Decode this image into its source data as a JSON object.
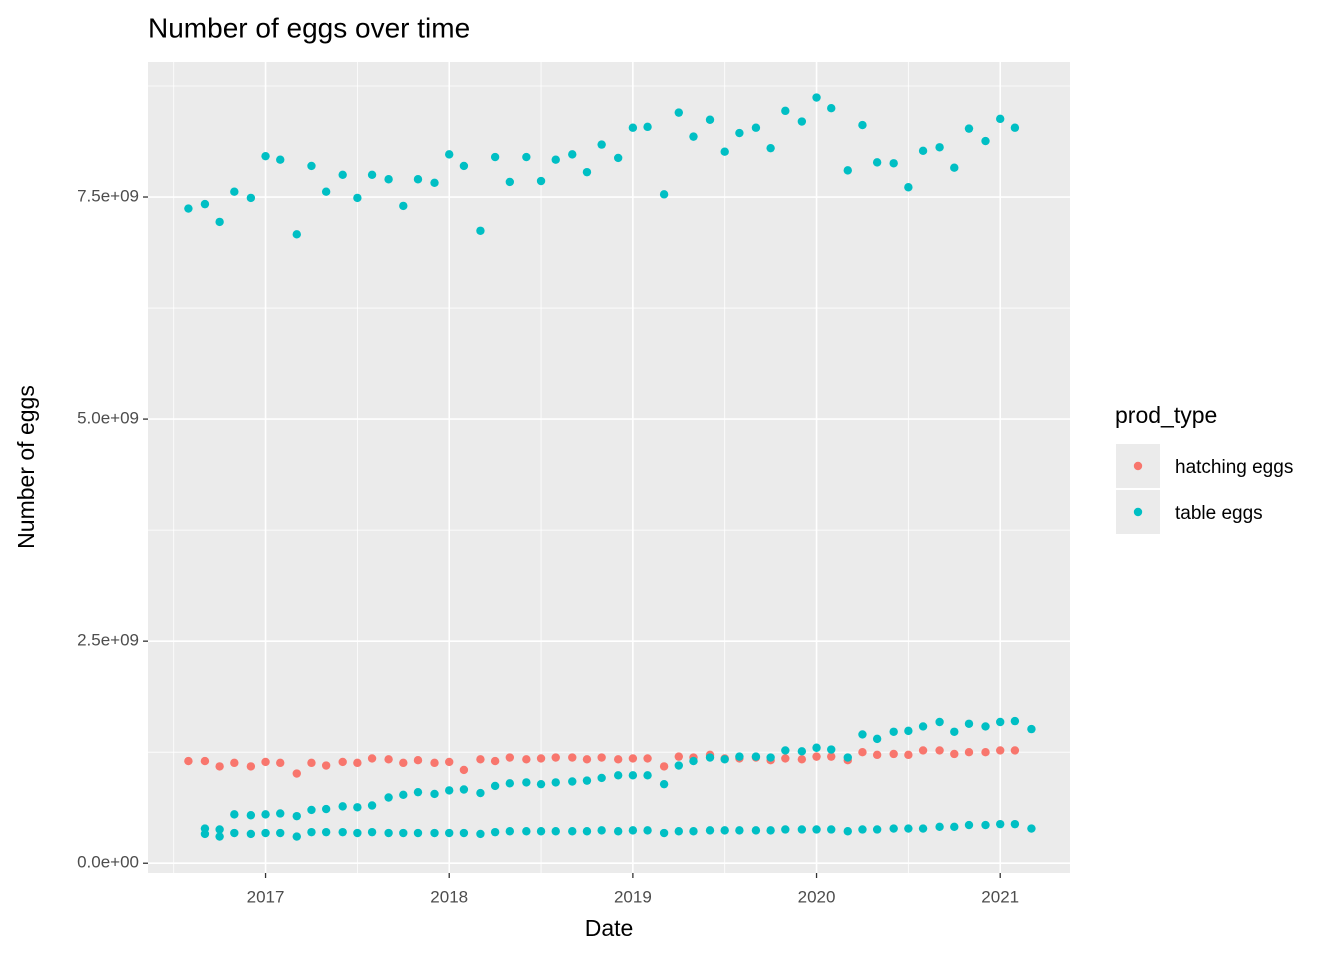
{
  "chart_data": {
    "type": "scatter",
    "title": "Number of eggs over time",
    "x_label": "Date",
    "y_label": "Number of eggs",
    "legend_title": "prod_type",
    "xlim": [
      2016.36,
      2021.38
    ],
    "xticks": [
      2017,
      2018,
      2019,
      2020,
      2021
    ],
    "ylim": [
      -110000000,
      9020000000
    ],
    "yticks": [
      {
        "value": 0,
        "label": "0.0e+00"
      },
      {
        "value": 2500000000,
        "label": "2.5e+09"
      },
      {
        "value": 5000000000,
        "label": "5.0e+09"
      },
      {
        "value": 7500000000,
        "label": "7.5e+09"
      }
    ],
    "grid": true,
    "legend": "right",
    "series": [
      {
        "name": "hatching eggs",
        "color": "#F8766D",
        "x": [
          2016.58,
          2016.67,
          2016.75,
          2016.83,
          2016.92,
          2017.0,
          2017.08,
          2017.17,
          2017.25,
          2017.33,
          2017.42,
          2017.5,
          2017.58,
          2017.67,
          2017.75,
          2017.83,
          2017.92,
          2018.0,
          2018.08,
          2018.17,
          2018.25,
          2018.33,
          2018.42,
          2018.5,
          2018.58,
          2018.67,
          2018.75,
          2018.83,
          2018.92,
          2019.0,
          2019.08,
          2019.17,
          2019.25,
          2019.33,
          2019.42,
          2019.5,
          2019.58,
          2019.67,
          2019.75,
          2019.83,
          2019.92,
          2020.0,
          2020.08,
          2020.17,
          2020.25,
          2020.33,
          2020.42,
          2020.5,
          2020.58,
          2020.67,
          2020.75,
          2020.83,
          2020.92,
          2021.0,
          2021.08
        ],
        "values": [
          1150000000.0,
          1150000000.0,
          1090000000.0,
          1130000000.0,
          1090000000.0,
          1140000000.0,
          1130000000.0,
          1010000000.0,
          1130000000.0,
          1100000000.0,
          1140000000.0,
          1130000000.0,
          1180000000.0,
          1170000000.0,
          1130000000.0,
          1160000000.0,
          1130000000.0,
          1140000000.0,
          1050000000.0,
          1170000000.0,
          1150000000.0,
          1190000000.0,
          1170000000.0,
          1180000000.0,
          1190000000.0,
          1190000000.0,
          1170000000.0,
          1190000000.0,
          1170000000.0,
          1180000000.0,
          1180000000.0,
          1090000000.0,
          1200000000.0,
          1190000000.0,
          1220000000.0,
          1180000000.0,
          1180000000.0,
          1190000000.0,
          1160000000.0,
          1180000000.0,
          1170000000.0,
          1200000000.0,
          1200000000.0,
          1160000000.0,
          1250000000.0,
          1220000000.0,
          1230000000.0,
          1220000000.0,
          1270000000.0,
          1270000000.0,
          1230000000.0,
          1250000000.0,
          1250000000.0,
          1270000000.0,
          1270000000.0
        ]
      },
      {
        "name": "table eggs",
        "color": "#00BFC4",
        "x": [
          2016.58,
          2016.67,
          2016.75,
          2016.83,
          2016.92,
          2017.0,
          2017.08,
          2017.17,
          2017.25,
          2017.33,
          2017.42,
          2017.5,
          2017.58,
          2017.67,
          2017.75,
          2017.83,
          2017.92,
          2018.0,
          2018.08,
          2018.17,
          2018.25,
          2018.33,
          2018.42,
          2018.5,
          2018.58,
          2018.67,
          2018.75,
          2018.83,
          2018.92,
          2019.0,
          2019.08,
          2019.17,
          2019.25,
          2019.33,
          2019.42,
          2019.5,
          2019.58,
          2019.67,
          2019.75,
          2019.83,
          2019.92,
          2020.0,
          2020.08,
          2020.17,
          2020.25,
          2020.33,
          2020.42,
          2020.5,
          2020.58,
          2020.67,
          2020.75,
          2020.83,
          2020.92,
          2021.0,
          2021.08,
          2016.67,
          2016.75,
          2016.83,
          2016.92,
          2017.0,
          2017.08,
          2017.17,
          2017.25,
          2017.33,
          2017.42,
          2017.5,
          2017.58,
          2017.67,
          2017.75,
          2017.83,
          2017.92,
          2018.0,
          2018.08,
          2018.17,
          2018.25,
          2018.33,
          2018.42,
          2018.5,
          2018.58,
          2018.67,
          2018.75,
          2018.83,
          2018.92,
          2019.0,
          2019.08,
          2019.17,
          2019.25,
          2019.33,
          2019.42,
          2019.5,
          2019.58,
          2019.67,
          2019.75,
          2019.83,
          2019.92,
          2020.0,
          2020.08,
          2020.17,
          2020.25,
          2020.33,
          2020.42,
          2020.5,
          2020.58,
          2020.67,
          2020.75,
          2020.83,
          2020.92,
          2021.0,
          2021.08,
          2021.17,
          2016.67,
          2016.75,
          2016.83,
          2016.92,
          2017.0,
          2017.08,
          2017.17,
          2017.25,
          2017.33,
          2017.42,
          2017.5,
          2017.58,
          2017.67,
          2017.75,
          2017.83,
          2017.92,
          2018.0,
          2018.08,
          2018.17,
          2018.25,
          2018.33,
          2018.42,
          2018.5,
          2018.58,
          2018.67,
          2018.75,
          2018.83,
          2018.92,
          2019.0,
          2019.08,
          2019.17,
          2019.25,
          2019.33,
          2019.42,
          2019.5,
          2019.58,
          2019.67,
          2019.75,
          2019.83,
          2019.92,
          2020.0,
          2020.08,
          2020.17,
          2020.25,
          2020.33,
          2020.42,
          2020.5,
          2020.58,
          2020.67,
          2020.75,
          2020.83,
          2020.92,
          2021.0,
          2021.08,
          2021.17
        ],
        "values": [
          7370000000.0,
          7420000000.0,
          7220000000.0,
          7560000000.0,
          7490000000.0,
          7960000000.0,
          7920000000.0,
          7080000000.0,
          7850000000.0,
          7560000000.0,
          7750000000.0,
          7490000000.0,
          7750000000.0,
          7700000000.0,
          7400000000.0,
          7700000000.0,
          7660000000.0,
          7980000000.0,
          7850000000.0,
          7120000000.0,
          7950000000.0,
          7670000000.0,
          7950000000.0,
          7680000000.0,
          7920000000.0,
          7980000000.0,
          7780000000.0,
          8090000000.0,
          7940000000.0,
          8280000000.0,
          8290000000.0,
          7530000000.0,
          8450000000.0,
          8180000000.0,
          8370000000.0,
          8010000000.0,
          8220000000.0,
          8280000000.0,
          8050000000.0,
          8470000000.0,
          8350000000.0,
          8620000000.0,
          8500000000.0,
          7800000000.0,
          8310000000.0,
          7890000000.0,
          7880000000.0,
          7610000000.0,
          8020000000.0,
          8060000000.0,
          7830000000.0,
          8270000000.0,
          8130000000.0,
          8380000000.0,
          8280000000.0,
          390000000.0,
          380000000.0,
          550000000.0,
          540000000.0,
          550000000.0,
          560000000.0,
          530000000.0,
          600000000.0,
          610000000.0,
          640000000.0,
          630000000.0,
          650000000.0,
          740000000.0,
          770000000.0,
          800000000.0,
          780000000.0,
          820000000.0,
          830000000.0,
          790000000.0,
          870000000.0,
          900000000.0,
          910000000.0,
          890000000.0,
          910000000.0,
          920000000.0,
          930000000.0,
          960000000.0,
          990000000.0,
          990000000.0,
          990000000.0,
          890000000.0,
          1100000000.0,
          1150000000.0,
          1190000000.0,
          1170000000.0,
          1200000000.0,
          1200000000.0,
          1190000000.0,
          1270000000.0,
          1260000000.0,
          1300000000.0,
          1280000000.0,
          1190000000.0,
          1450000000.0,
          1400000000.0,
          1480000000.0,
          1490000000.0,
          1540000000.0,
          1590000000.0,
          1480000000.0,
          1570000000.0,
          1540000000.0,
          1590000000.0,
          1600000000.0,
          1510000000.0,
          330000000.0,
          300000000.0,
          340000000.0,
          330000000.0,
          340000000.0,
          340000000.0,
          300000000.0,
          350000000.0,
          350000000.0,
          350000000.0,
          340000000.0,
          350000000.0,
          340000000.0,
          340000000.0,
          340000000.0,
          340000000.0,
          340000000.0,
          340000000.0,
          330000000.0,
          350000000.0,
          360000000.0,
          360000000.0,
          360000000.0,
          360000000.0,
          360000000.0,
          360000000.0,
          370000000.0,
          360000000.0,
          370000000.0,
          370000000.0,
          340000000.0,
          360000000.0,
          360000000.0,
          370000000.0,
          370000000.0,
          370000000.0,
          370000000.0,
          370000000.0,
          380000000.0,
          380000000.0,
          380000000.0,
          380000000.0,
          360000000.0,
          380000000.0,
          380000000.0,
          390000000.0,
          390000000.0,
          390000000.0,
          410000000.0,
          410000000.0,
          430000000.0,
          430000000.0,
          440000000.0,
          440000000.0,
          390000000.0
        ]
      }
    ]
  }
}
